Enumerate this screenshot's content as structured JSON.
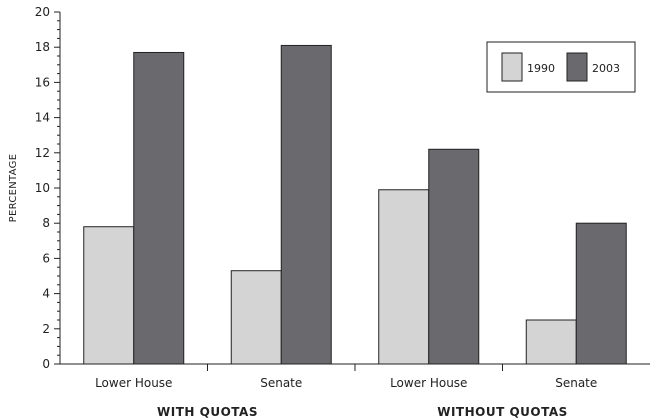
{
  "chart_data": {
    "type": "bar",
    "ylabel": "PERCENTAGE",
    "ylim": [
      0,
      20
    ],
    "yticks": [
      0,
      2,
      4,
      6,
      8,
      10,
      12,
      14,
      16,
      18,
      20
    ],
    "categories": [
      "Lower House",
      "Senate",
      "Lower House",
      "Senate"
    ],
    "groups": [
      {
        "label": "WITH QUOTAS",
        "categories": [
          0,
          1
        ]
      },
      {
        "label": "WITHOUT QUOTAS",
        "categories": [
          2,
          3
        ]
      }
    ],
    "series": [
      {
        "name": "1990",
        "color": "#d4d4d4",
        "values": [
          7.8,
          5.3,
          9.9,
          2.5
        ]
      },
      {
        "name": "2003",
        "color": "#6a6a6e",
        "values": [
          17.7,
          18.1,
          12.2,
          8.0
        ]
      }
    ],
    "legend_position": "top-right",
    "grid": false
  }
}
